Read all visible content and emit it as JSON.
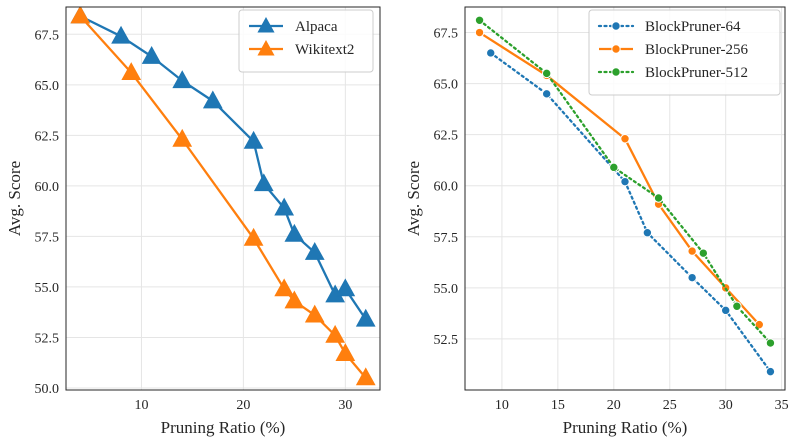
{
  "chart_data": [
    {
      "type": "line",
      "xlabel": "Pruning Ratio (%)",
      "ylabel": "Avg. Score",
      "xlim": [
        2.6,
        33.4
      ],
      "ylim": [
        49.9,
        68.85
      ],
      "xticks": [
        10,
        20,
        30
      ],
      "yticks": [
        50.0,
        52.5,
        55.0,
        57.5,
        60.0,
        62.5,
        65.0,
        67.5
      ],
      "grid": true,
      "legend_position": "top-right",
      "series": [
        {
          "name": "Alpaca",
          "color": "#1f77b4",
          "marker": "triangle",
          "line_style": "solid",
          "points": [
            [
              4,
              68.4
            ],
            [
              8,
              67.4
            ],
            [
              11,
              66.4
            ],
            [
              14,
              65.2
            ],
            [
              17,
              64.2
            ],
            [
              21,
              62.2
            ],
            [
              22,
              60.1
            ],
            [
              24,
              58.9
            ],
            [
              25,
              57.6
            ],
            [
              27,
              56.7
            ],
            [
              29,
              54.6
            ],
            [
              30,
              54.9
            ],
            [
              32,
              53.4
            ]
          ]
        },
        {
          "name": "Wikitext2",
          "color": "#ff7f0e",
          "marker": "triangle",
          "line_style": "solid",
          "points": [
            [
              4,
              68.4
            ],
            [
              9,
              65.6
            ],
            [
              14,
              62.3
            ],
            [
              21,
              57.4
            ],
            [
              24,
              54.9
            ],
            [
              25,
              54.3
            ],
            [
              27,
              53.6
            ],
            [
              29,
              52.6
            ],
            [
              30,
              51.7
            ],
            [
              32,
              50.5
            ]
          ]
        }
      ]
    },
    {
      "type": "line",
      "xlabel": "Pruning Ratio (%)",
      "ylabel": "Avg. Score",
      "xlim": [
        6.7,
        35.3
      ],
      "ylim": [
        50.0,
        68.75
      ],
      "xticks": [
        10,
        15,
        20,
        25,
        30,
        35
      ],
      "yticks": [
        52.5,
        55.0,
        57.5,
        60.0,
        62.5,
        65.0,
        67.5
      ],
      "grid": true,
      "legend_position": "top-right",
      "series": [
        {
          "name": "BlockPruner-64",
          "color": "#1f77b4",
          "marker": "circle",
          "line_style": "dotted",
          "points": [
            [
              9,
              66.5
            ],
            [
              14,
              64.5
            ],
            [
              21,
              60.2
            ],
            [
              23,
              57.7
            ],
            [
              27,
              55.5
            ],
            [
              30,
              53.9
            ],
            [
              34,
              50.9
            ]
          ]
        },
        {
          "name": "BlockPruner-256",
          "color": "#ff7f0e",
          "marker": "circle",
          "line_style": "solid",
          "points": [
            [
              8,
              67.5
            ],
            [
              14,
              65.4
            ],
            [
              21,
              62.3
            ],
            [
              24,
              59.1
            ],
            [
              27,
              56.8
            ],
            [
              30,
              55.0
            ],
            [
              33,
              53.2
            ]
          ]
        },
        {
          "name": "BlockPruner-512",
          "color": "#2ca02c",
          "marker": "circle",
          "line_style": "dotted",
          "points": [
            [
              8,
              68.1
            ],
            [
              14,
              65.5
            ],
            [
              20,
              60.9
            ],
            [
              24,
              59.4
            ],
            [
              28,
              56.7
            ],
            [
              31,
              54.1
            ],
            [
              34,
              52.3
            ]
          ]
        }
      ]
    }
  ]
}
